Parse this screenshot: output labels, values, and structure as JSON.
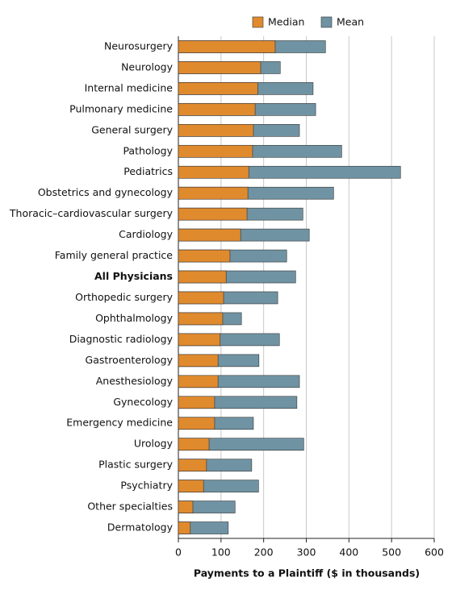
{
  "chart_data": {
    "type": "bar",
    "orientation": "horizontal",
    "overlap": true,
    "x_label": "Payments to a Plaintiff ($ in thousands)",
    "categories": [
      "Neurosurgery",
      "Neurology",
      "Internal medicine",
      "Pulmonary medicine",
      "General surgery",
      "Pathology",
      "Pediatrics",
      "Obstetrics and gynecology",
      "Thoracic–cardiovascular surgery",
      "Cardiology",
      "Family general practice",
      "All Physicians",
      "Orthopedic surgery",
      "Ophthalmology",
      "Diagnostic radiology",
      "Gastroenterology",
      "Anesthesiology",
      "Gynecology",
      "Emergency medicine",
      "Urology",
      "Plastic surgery",
      "Psychiatry",
      "Other specialties",
      "Dermatology"
    ],
    "bold_categories": [
      "All Physicians"
    ],
    "series": [
      {
        "name": "Mean",
        "color": "#6f93a3",
        "values": [
          345,
          239,
          316,
          322,
          284,
          383,
          521,
          364,
          292,
          307,
          254,
          275,
          233,
          148,
          237,
          189,
          284,
          278,
          176,
          294,
          172,
          188,
          133,
          117
        ]
      },
      {
        "name": "Median",
        "color": "#e08a2e",
        "values": [
          227,
          193,
          186,
          180,
          176,
          174,
          165,
          163,
          161,
          146,
          121,
          112,
          106,
          104,
          98,
          93,
          93,
          85,
          85,
          72,
          66,
          59,
          34,
          28
        ]
      }
    ],
    "legend_order": [
      "Median",
      "Mean"
    ],
    "xlim": [
      0,
      600
    ],
    "xticks": [
      0,
      100,
      200,
      300,
      400,
      500,
      600
    ],
    "grid": true
  }
}
